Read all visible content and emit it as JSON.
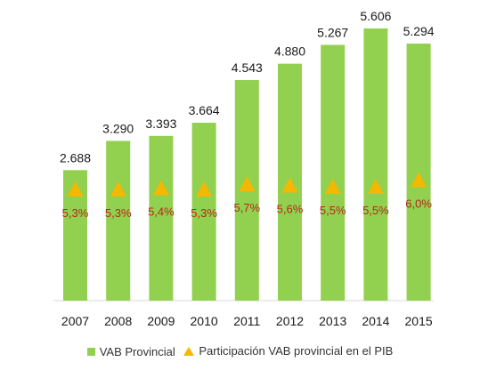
{
  "chart_data": {
    "type": "bar",
    "categories": [
      "2007",
      "2008",
      "2009",
      "2010",
      "2011",
      "2012",
      "2013",
      "2014",
      "2015"
    ],
    "series": [
      {
        "name": "VAB Provincial",
        "type": "bar",
        "values": [
          2688,
          3290,
          3393,
          3664,
          4543,
          4880,
          5267,
          5606,
          5294
        ],
        "labels": [
          "2.688",
          "3.290",
          "3.393",
          "3.664",
          "4.543",
          "4.880",
          "5.267",
          "5.606",
          "5.294"
        ],
        "color": "#92d050"
      },
      {
        "name": "Participación VAB provincial en el PIB",
        "type": "marker-triangle",
        "values": [
          5.3,
          5.3,
          5.4,
          5.3,
          5.7,
          5.6,
          5.5,
          5.5,
          6.0
        ],
        "labels": [
          "5,3%",
          "5,3%",
          "5,4%",
          "5,3%",
          "5,7%",
          "5,6%",
          "5,5%",
          "5,5%",
          "6,0%"
        ],
        "color": "#f5b800",
        "label_color": "#b22a16"
      }
    ],
    "ylim": [
      0,
      5606
    ],
    "grid": false,
    "legend": "bottom",
    "title": "",
    "xlabel": "",
    "ylabel": ""
  }
}
